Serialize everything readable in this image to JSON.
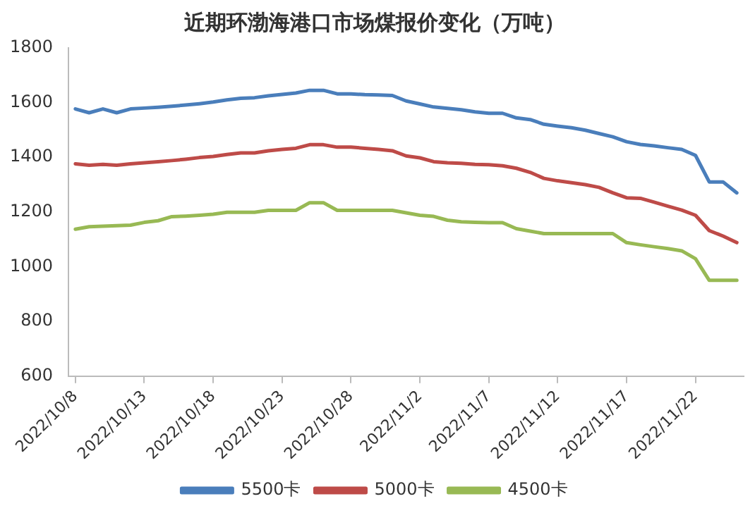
{
  "chart_data": {
    "type": "line",
    "title": "近期环渤海港口市场煤报价变化（万吨）",
    "categories": [
      "2022/10/8",
      null,
      null,
      null,
      null,
      "2022/10/13",
      null,
      null,
      null,
      null,
      "2022/10/18",
      null,
      null,
      null,
      null,
      "2022/10/23",
      null,
      null,
      null,
      null,
      "2022/10/28",
      null,
      null,
      null,
      null,
      "2022/11/2",
      null,
      null,
      null,
      null,
      "2022/11/7",
      null,
      null,
      null,
      null,
      "2022/11/12",
      null,
      null,
      null,
      null,
      "2022/11/17",
      null,
      null,
      null,
      null,
      "2022/11/22",
      null,
      null,
      null
    ],
    "series": [
      {
        "name": "5500卡",
        "color": "#4a7ebb",
        "values": [
          1577,
          1563,
          1577,
          1563,
          1577,
          1580,
          1583,
          1587,
          1591,
          1596,
          1602,
          1610,
          1616,
          1618,
          1625,
          1630,
          1635,
          1645,
          1645,
          1632,
          1632,
          1629,
          1628,
          1626,
          1606,
          1595,
          1584,
          1579,
          1574,
          1566,
          1561,
          1561,
          1544,
          1538,
          1521,
          1514,
          1508,
          1499,
          1487,
          1475,
          1457,
          1447,
          1442,
          1435,
          1429,
          1407,
          1310,
          1310,
          1270
        ]
      },
      {
        "name": "5000卡",
        "color": "#be4b48",
        "values": [
          1376,
          1371,
          1374,
          1371,
          1376,
          1380,
          1384,
          1388,
          1393,
          1399,
          1403,
          1410,
          1416,
          1416,
          1424,
          1429,
          1433,
          1446,
          1446,
          1437,
          1437,
          1433,
          1429,
          1424,
          1405,
          1398,
          1384,
          1380,
          1378,
          1374,
          1373,
          1369,
          1360,
          1345,
          1323,
          1314,
          1307,
          1300,
          1290,
          1270,
          1252,
          1250,
          1236,
          1221,
          1207,
          1188,
          1132,
          1112,
          1088
        ]
      },
      {
        "name": "4500卡",
        "color": "#98b954",
        "values": [
          1137,
          1146,
          1148,
          1150,
          1152,
          1162,
          1168,
          1183,
          1185,
          1188,
          1192,
          1199,
          1199,
          1199,
          1206,
          1206,
          1206,
          1234,
          1234,
          1206,
          1206,
          1206,
          1206,
          1206,
          1197,
          1188,
          1184,
          1170,
          1164,
          1162,
          1161,
          1161,
          1139,
          1130,
          1121,
          1121,
          1121,
          1121,
          1121,
          1121,
          1088,
          1080,
          1073,
          1066,
          1058,
          1029,
          950,
          950,
          950
        ]
      }
    ],
    "ylim": [
      600,
      1800
    ],
    "yticks": [
      600,
      800,
      1000,
      1200,
      1400,
      1600,
      1800
    ],
    "grid": false,
    "legend": "bottom",
    "marker": "none",
    "line_style": "solid"
  }
}
